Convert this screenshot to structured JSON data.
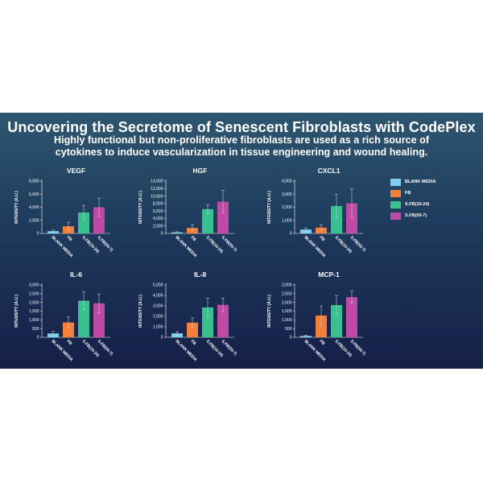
{
  "header": {
    "title": "Uncovering the Secretome of Senescent Fibroblasts with CodePlex",
    "subtitle": "Highly functional but non-proliferative fibroblasts are used as a rich source of cytokines to induce vascularization in tissue engineering and wound healing."
  },
  "legend": {
    "items": [
      {
        "label": "BLANK MEDIA",
        "color": "#7fd0ee"
      },
      {
        "label": "FB",
        "color": "#f47f3b"
      },
      {
        "label": "S.FB(10-24)",
        "color": "#38c08f"
      },
      {
        "label": "S.FB(50-7)",
        "color": "#bf4aa6"
      }
    ]
  },
  "chart_data": [
    {
      "type": "bar",
      "title": "VEGF",
      "ylabel": "INTENSITY (A.U.)",
      "categories": [
        "BLANK MEDIA",
        "FB",
        "S.FB(10-24)",
        "S.FB(50-7)"
      ],
      "values": [
        350,
        1100,
        3200,
        4000
      ],
      "errors": [
        150,
        600,
        1100,
        1400
      ],
      "ylim": [
        0,
        8000
      ],
      "yticks": [
        0,
        2000,
        4000,
        6000,
        8000
      ],
      "ytick_labels": [
        "0",
        "2,000",
        "4,000",
        "6,000",
        "8,000"
      ]
    },
    {
      "type": "bar",
      "title": "HGF",
      "ylabel": "INTENSITY (A.U.)",
      "categories": [
        "BLANK MEDIA",
        "FB",
        "S.FB(10-24)",
        "S.FB(50-7)"
      ],
      "values": [
        300,
        1500,
        6500,
        8500
      ],
      "errors": [
        150,
        800,
        1200,
        3000
      ],
      "ylim": [
        0,
        14000
      ],
      "yticks": [
        0,
        2000,
        4000,
        6000,
        8000,
        10000,
        12000,
        14000
      ],
      "ytick_labels": [
        "0",
        "2,000",
        "4,000",
        "6,000",
        "8,000",
        "10,000",
        "12,000",
        "14,000"
      ]
    },
    {
      "type": "bar",
      "title": "CXCL1",
      "ylabel": "INTENSITY (A.U.)",
      "categories": [
        "BLANK MEDIA",
        "FB",
        "S.FB(10-24)",
        "S.FB(50-7)"
      ],
      "values": [
        300,
        450,
        2100,
        2300
      ],
      "errors": [
        120,
        200,
        900,
        1100
      ],
      "ylim": [
        0,
        4000
      ],
      "yticks": [
        0,
        1000,
        2000,
        3000,
        4000
      ],
      "ytick_labels": [
        "0",
        "1,000",
        "2,000",
        "3,000",
        "4,000"
      ]
    },
    {
      "type": "bar",
      "title": "IL-6",
      "ylabel": "INTENSITY (A.U.)",
      "categories": [
        "BLANK MEDIA",
        "FB",
        "S.FB(10-24)",
        "S.FB(50-7)"
      ],
      "values": [
        220,
        850,
        2100,
        1950
      ],
      "errors": [
        120,
        320,
        520,
        530
      ],
      "ylim": [
        0,
        3000
      ],
      "yticks": [
        0,
        500,
        1000,
        1500,
        2000,
        2500,
        3000
      ],
      "ytick_labels": [
        "0",
        "500",
        "1,000",
        "1,500",
        "2,000",
        "2,500",
        "3,000"
      ]
    },
    {
      "type": "bar",
      "title": "IL-8",
      "ylabel": "INTENSITY (A.U.)",
      "categories": [
        "BLANK MEDIA",
        "FB",
        "S.FB(10-24)",
        "S.FB(50-7)"
      ],
      "values": [
        380,
        1400,
        2850,
        3100
      ],
      "errors": [
        150,
        450,
        900,
        650
      ],
      "ylim": [
        0,
        5000
      ],
      "yticks": [
        0,
        1000,
        2000,
        3000,
        4000,
        5000
      ],
      "ytick_labels": [
        "0",
        "1,000",
        "2,000",
        "3,000",
        "4,000",
        "5,000"
      ]
    },
    {
      "type": "bar",
      "title": "MCP-1",
      "ylabel": "INTENSITY (A.U.)",
      "categories": [
        "BLANK MEDIA",
        "FB",
        "S.FB(10-24)",
        "S.FB(50-7)"
      ],
      "values": [
        80,
        1250,
        1850,
        2300
      ],
      "errors": [
        40,
        550,
        550,
        350
      ],
      "ylim": [
        0,
        3000
      ],
      "yticks": [
        0,
        500,
        1000,
        1500,
        2000,
        2500,
        3000
      ],
      "ytick_labels": [
        "0",
        "500",
        "1,000",
        "1,500",
        "2,000",
        "2,500",
        "3,000"
      ]
    }
  ],
  "colors": {
    "bars": [
      "#7fd0ee",
      "#f47f3b",
      "#38c08f",
      "#bf4aa6"
    ],
    "axis": "#ffffff",
    "text": "#ffffff"
  }
}
